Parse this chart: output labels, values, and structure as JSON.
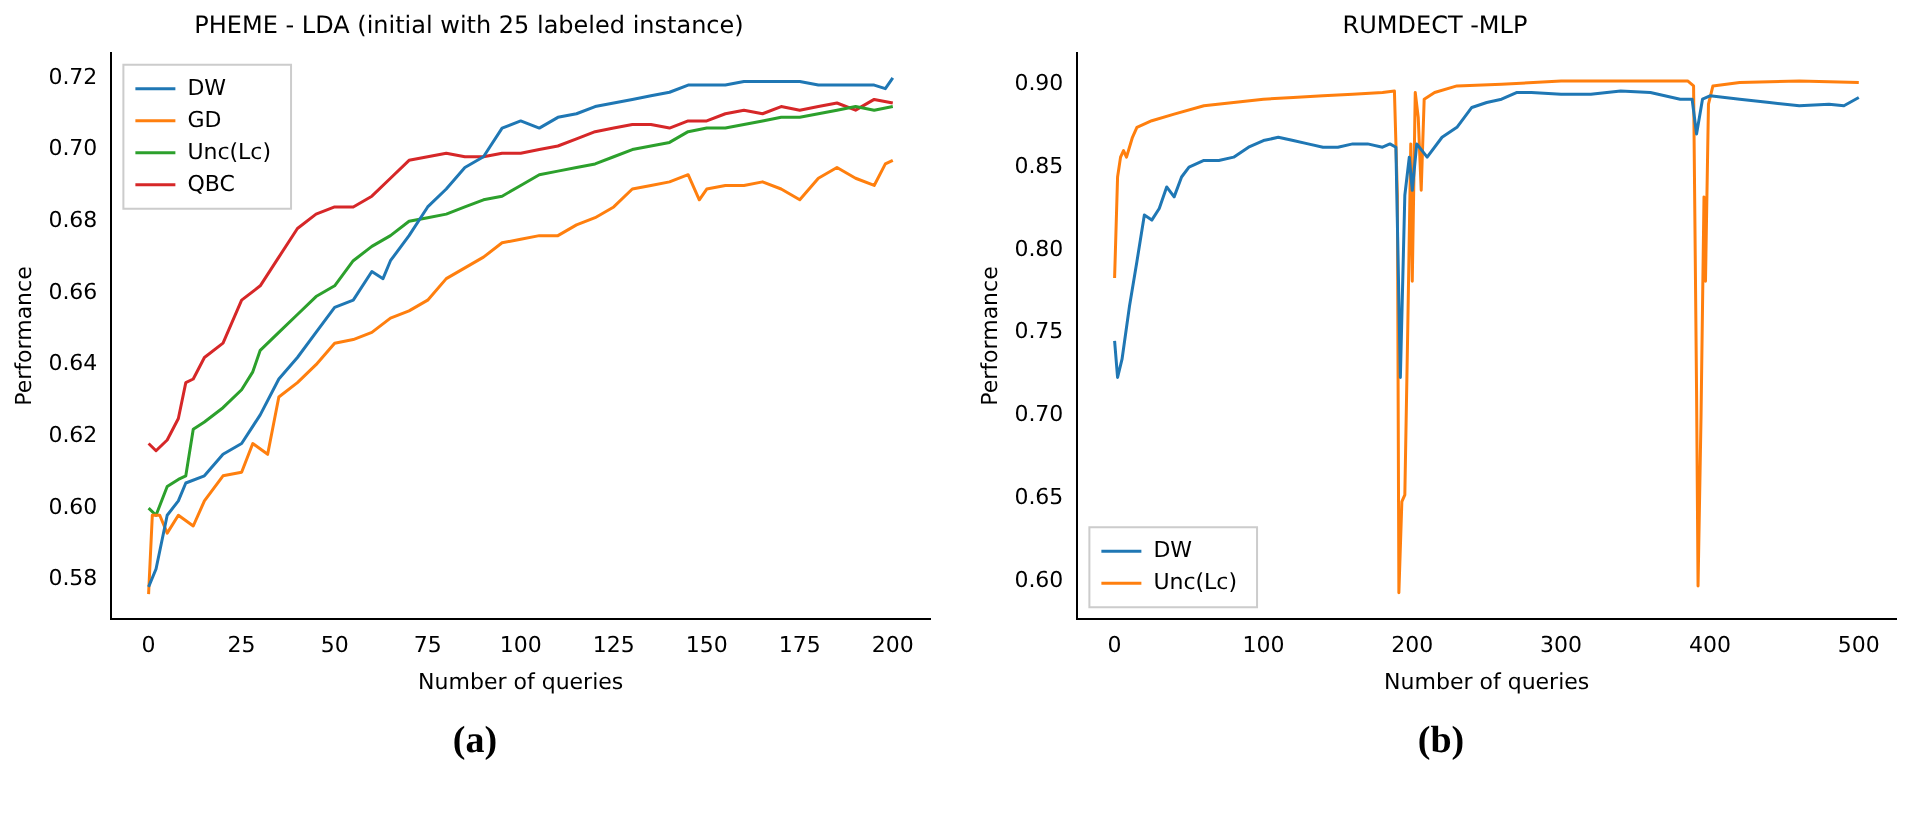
{
  "chart_data": [
    {
      "type": "line",
      "title": "PHEME - LDA (initial with 25 labeled instance)",
      "xlabel": "Number of queries",
      "ylabel": "Performance",
      "annotations": [
        "(a)"
      ],
      "legend": "top left",
      "grid": false,
      "marker": "none",
      "line_style": "solid",
      "xlim": [
        -10,
        210
      ],
      "xticks": [
        0,
        25,
        50,
        75,
        100,
        125,
        150,
        175,
        200
      ],
      "ylim": [
        0.569,
        0.727
      ],
      "yticks": [
        0.58,
        {
          "value": 0.6,
          "label": "0.60"
        },
        0.62,
        0.64,
        0.66,
        0.68,
        {
          "value": 0.7,
          "label": "0.70"
        },
        0.72
      ],
      "series": [
        {
          "name": "DW",
          "color": "#1f77b4",
          "x": [
            0,
            2,
            5,
            8,
            10,
            15,
            20,
            25,
            30,
            35,
            40,
            45,
            50,
            55,
            60,
            63,
            65,
            70,
            75,
            80,
            85,
            90,
            95,
            100,
            105,
            110,
            115,
            120,
            125,
            130,
            135,
            140,
            145,
            150,
            155,
            160,
            165,
            170,
            175,
            180,
            185,
            190,
            195,
            198,
            200
          ],
          "values": [
            0.578,
            0.583,
            0.598,
            0.602,
            0.607,
            0.609,
            0.615,
            0.618,
            0.626,
            0.636,
            0.642,
            0.649,
            0.656,
            0.658,
            0.666,
            0.664,
            0.669,
            0.676,
            0.684,
            0.689,
            0.695,
            0.698,
            0.706,
            0.708,
            0.706,
            0.709,
            0.71,
            0.712,
            0.713,
            0.714,
            0.715,
            0.716,
            0.718,
            0.718,
            0.718,
            0.719,
            0.719,
            0.719,
            0.719,
            0.718,
            0.718,
            0.718,
            0.718,
            0.717,
            0.72
          ]
        },
        {
          "name": "GD",
          "color": "#ff7f0e",
          "x": [
            0,
            1,
            3,
            5,
            8,
            12,
            15,
            20,
            25,
            28,
            32,
            35,
            40,
            45,
            50,
            55,
            60,
            65,
            70,
            75,
            80,
            85,
            90,
            95,
            100,
            105,
            110,
            115,
            120,
            125,
            130,
            135,
            140,
            145,
            148,
            150,
            155,
            160,
            165,
            170,
            175,
            180,
            185,
            190,
            195,
            198,
            200
          ],
          "values": [
            0.576,
            0.598,
            0.598,
            0.593,
            0.598,
            0.595,
            0.602,
            0.609,
            0.61,
            0.618,
            0.615,
            0.631,
            0.635,
            0.64,
            0.646,
            0.647,
            0.649,
            0.653,
            0.655,
            0.658,
            0.664,
            0.667,
            0.67,
            0.674,
            0.675,
            0.676,
            0.676,
            0.679,
            0.681,
            0.684,
            0.689,
            0.69,
            0.691,
            0.693,
            0.686,
            0.689,
            0.69,
            0.69,
            0.691,
            0.689,
            0.686,
            0.692,
            0.695,
            0.692,
            0.69,
            0.696,
            0.697
          ]
        },
        {
          "name": "Unc(Lc)",
          "color": "#2ca02c",
          "x": [
            0,
            2,
            5,
            8,
            10,
            12,
            15,
            20,
            25,
            28,
            30,
            35,
            40,
            45,
            50,
            55,
            60,
            65,
            70,
            75,
            80,
            85,
            90,
            95,
            100,
            105,
            110,
            115,
            120,
            125,
            130,
            135,
            140,
            145,
            150,
            155,
            160,
            165,
            170,
            175,
            180,
            185,
            190,
            195,
            200
          ],
          "values": [
            0.6,
            0.598,
            0.606,
            0.608,
            0.609,
            0.622,
            0.624,
            0.628,
            0.633,
            0.638,
            0.644,
            0.649,
            0.654,
            0.659,
            0.662,
            0.669,
            0.673,
            0.676,
            0.68,
            0.681,
            0.682,
            0.684,
            0.686,
            0.687,
            0.69,
            0.693,
            0.694,
            0.695,
            0.696,
            0.698,
            0.7,
            0.701,
            0.702,
            0.705,
            0.706,
            0.706,
            0.707,
            0.708,
            0.709,
            0.709,
            0.71,
            0.711,
            0.712,
            0.711,
            0.712
          ]
        },
        {
          "name": "QBC",
          "color": "#d62728",
          "x": [
            0,
            2,
            5,
            8,
            10,
            12,
            15,
            20,
            25,
            30,
            35,
            40,
            45,
            50,
            55,
            60,
            65,
            70,
            75,
            80,
            85,
            90,
            95,
            100,
            105,
            110,
            115,
            120,
            125,
            130,
            135,
            140,
            145,
            150,
            155,
            160,
            165,
            170,
            175,
            180,
            185,
            190,
            195,
            200
          ],
          "values": [
            0.618,
            0.616,
            0.619,
            0.625,
            0.635,
            0.636,
            0.642,
            0.646,
            0.658,
            0.662,
            0.67,
            0.678,
            0.682,
            0.684,
            0.684,
            0.687,
            0.692,
            0.697,
            0.698,
            0.699,
            0.698,
            0.698,
            0.699,
            0.699,
            0.7,
            0.701,
            0.703,
            0.705,
            0.706,
            0.707,
            0.707,
            0.706,
            0.708,
            0.708,
            0.71,
            0.711,
            0.71,
            0.712,
            0.711,
            0.712,
            0.713,
            0.711,
            0.714,
            0.713
          ]
        }
      ]
    },
    {
      "type": "line",
      "title": "RUMDECT -MLP",
      "xlabel": "Number of queries",
      "ylabel": "Performance",
      "annotations": [
        "(b)"
      ],
      "legend": "bottom left",
      "grid": false,
      "marker": "none",
      "line_style": "solid",
      "xlim": [
        -25,
        525
      ],
      "xticks": [
        0,
        100,
        200,
        300,
        400,
        500
      ],
      "ylim": [
        0.577,
        0.919
      ],
      "yticks": [
        {
          "value": 0.6,
          "label": "0.60"
        },
        0.65,
        {
          "value": 0.7,
          "label": "0.70"
        },
        0.75,
        {
          "value": 0.8,
          "label": "0.80"
        },
        0.85,
        {
          "value": 0.9,
          "label": "0.90"
        }
      ],
      "series": [
        {
          "name": "DW",
          "color": "#1f77b4",
          "x": [
            0,
            2,
            5,
            10,
            15,
            20,
            25,
            30,
            35,
            40,
            45,
            50,
            60,
            70,
            80,
            90,
            100,
            110,
            120,
            130,
            140,
            150,
            160,
            170,
            180,
            185,
            189,
            192,
            195,
            198,
            200,
            203,
            210,
            220,
            230,
            240,
            250,
            260,
            270,
            280,
            300,
            320,
            340,
            360,
            380,
            388,
            391,
            395,
            400,
            420,
            440,
            460,
            480,
            490,
            500
          ],
          "values": [
            0.745,
            0.723,
            0.734,
            0.766,
            0.793,
            0.821,
            0.818,
            0.825,
            0.838,
            0.832,
            0.844,
            0.85,
            0.854,
            0.854,
            0.856,
            0.862,
            0.866,
            0.868,
            0.866,
            0.864,
            0.862,
            0.862,
            0.864,
            0.864,
            0.862,
            0.864,
            0.862,
            0.723,
            0.833,
            0.856,
            0.836,
            0.864,
            0.856,
            0.868,
            0.874,
            0.886,
            0.889,
            0.891,
            0.895,
            0.895,
            0.894,
            0.894,
            0.896,
            0.895,
            0.891,
            0.891,
            0.87,
            0.891,
            0.893,
            0.891,
            0.889,
            0.887,
            0.888,
            0.887,
            0.892
          ]
        },
        {
          "name": "Unc(Lc)",
          "color": "#ff7f0e",
          "x": [
            0,
            2,
            4,
            6,
            8,
            12,
            15,
            25,
            40,
            60,
            80,
            100,
            120,
            140,
            160,
            180,
            188,
            190,
            191,
            193,
            195,
            197,
            199,
            200,
            202,
            204,
            206,
            208,
            215,
            230,
            260,
            300,
            340,
            385,
            389,
            391,
            392,
            394,
            396,
            397,
            399,
            402,
            420,
            460,
            500
          ],
          "values": [
            0.783,
            0.844,
            0.856,
            0.86,
            0.856,
            0.868,
            0.874,
            0.878,
            0.882,
            0.887,
            0.889,
            0.891,
            0.892,
            0.893,
            0.894,
            0.895,
            0.896,
            0.833,
            0.593,
            0.648,
            0.652,
            0.754,
            0.864,
            0.781,
            0.895,
            0.88,
            0.836,
            0.891,
            0.895,
            0.899,
            0.9,
            0.902,
            0.902,
            0.902,
            0.899,
            0.715,
            0.597,
            0.699,
            0.832,
            0.781,
            0.888,
            0.899,
            0.901,
            0.902,
            0.901
          ]
        }
      ]
    }
  ]
}
